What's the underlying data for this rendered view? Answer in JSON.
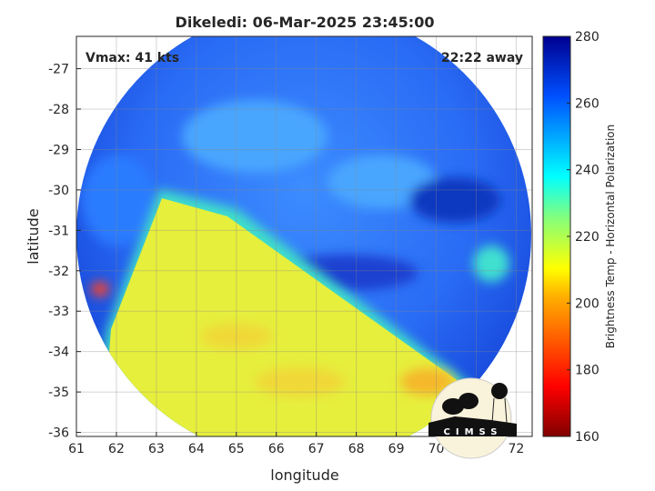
{
  "chart_data": {
    "type": "heatmap",
    "title": "Dikeledi: 06-Mar-2025 23:45:00",
    "xlabel": "longitude",
    "ylabel": "latitude",
    "xlim": [
      61,
      72.4
    ],
    "ylim": [
      -36.1,
      -26.2
    ],
    "xticks": [
      "61",
      "62",
      "63",
      "64",
      "65",
      "66",
      "67",
      "68",
      "69",
      "70",
      "71",
      "72"
    ],
    "yticks": [
      "-27",
      "-28",
      "-29",
      "-30",
      "-31",
      "-32",
      "-33",
      "-34",
      "-35",
      "-36"
    ],
    "grid": true,
    "annotations": {
      "vmax": "Vmax: 41 kts",
      "away": "22:22 away"
    },
    "colorbar": {
      "label": "Brightness Temp - Horizontal Polarization",
      "range": [
        160,
        280
      ],
      "ticks": [
        "160",
        "180",
        "200",
        "220",
        "240",
        "260",
        "280"
      ],
      "colormap": "jet",
      "position": "right"
    },
    "regions": [
      {
        "description_value": "north / east swath",
        "approx_value": 255
      },
      {
        "description_value": "south-west swath",
        "approx_value": 210
      }
    ]
  },
  "logo": {
    "text": "CIMSS"
  },
  "colors": {
    "cold": "#1b4fe8",
    "mid": "#3aa0ff",
    "warm": "#e6ef3c",
    "orange": "#f5b82a"
  }
}
